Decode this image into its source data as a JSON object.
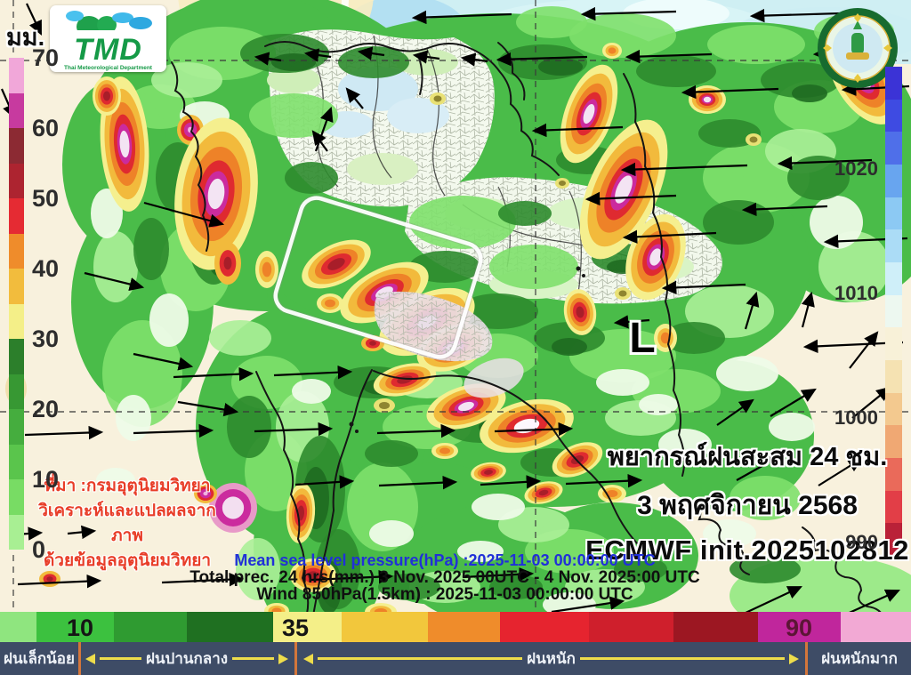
{
  "unit_label": "มม.",
  "tmd_logo": {
    "acronym": "TMD",
    "subtitle": "Thai Meteorological Department"
  },
  "seal": {
    "top_text": "กรมอุตุนิยมวิทยา",
    "bottom_text": "METEOROLOGICAL DEPARTMENT"
  },
  "left_scale": {
    "ticks": [
      "70",
      "60",
      "50",
      "40",
      "30",
      "20",
      "10",
      "0"
    ],
    "colors": [
      "#f1a7d9",
      "#c73a9f",
      "#8c2a33",
      "#ad2430",
      "#e52b33",
      "#ef8c2b",
      "#f2bc3d",
      "#f4ef88",
      "#2c7f2b",
      "#379833",
      "#45ad3e",
      "#5ac54c",
      "#78dc64",
      "#a8ef93"
    ]
  },
  "right_scale": {
    "ticks": [
      "1020",
      "1010",
      "1000",
      "990"
    ],
    "colors": [
      "#3b33d6",
      "#3e4be2",
      "#4f6fe9",
      "#68a5ef",
      "#8cc9f3",
      "#abdcf6",
      "#cfeff9",
      "#edf8f0",
      "#f8f1d8",
      "#f5e2b2",
      "#f3c98f",
      "#f0a873",
      "#ea6a5a",
      "#e23e47",
      "#ba2138"
    ]
  },
  "map": {
    "low_label": "L"
  },
  "title_block": {
    "line1": "พยากรณ์ฝนสะสม 24 ชม.",
    "line2": "3 พฤศจิกายน 2568",
    "line3": "ECMWF init.2025102812"
  },
  "source_block": {
    "line1": "ที่มา :กรมอุตุนิยมวิทยา",
    "line2": "วิเคราะห์และแปลผลจากภาพ",
    "line3": "ด้วยข้อมูลอุตุนิยมวิทยา"
  },
  "footer": {
    "line1": "Mean sea level pressure(hPa) :2025-11-03 00:00:00 UTC",
    "line2": "Total prec. 24 hrs(mm.) 3 Nov. 2025 00UTC - 4 Nov. 2025:00 UTC",
    "line3": "Wind 850hPa(1.5km) :  2025-11-03 00:00:00 UTC"
  },
  "legend": {
    "values": [
      "10",
      "35",
      "90"
    ],
    "value_colors": [
      "#151515",
      "#151515",
      "#5c1535"
    ],
    "colors": [
      "#8fe57f",
      "#3cc13f",
      "#2f9b31",
      "#1f7021",
      "#f4ef88",
      "#f2c73c",
      "#ef8c2b",
      "#e6242f",
      "#cf1f2c",
      "#9c1722",
      "#c0269c",
      "#f2a9d4"
    ],
    "widths": [
      41,
      87,
      82,
      97,
      77,
      97,
      81,
      100,
      95,
      95,
      93,
      79
    ],
    "categories": [
      "ฝนเล็กน้อย",
      "ฝนปานกลาง",
      "ฝนหนัก",
      "ฝนหนักมาก"
    ]
  }
}
